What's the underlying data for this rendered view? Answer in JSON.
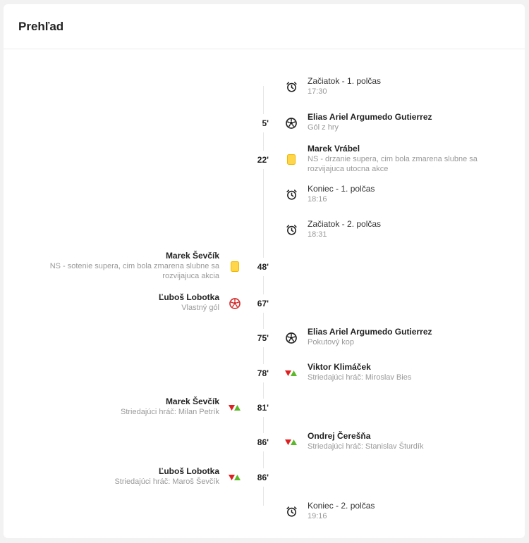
{
  "header": {
    "title": "Prehľad"
  },
  "colors": {
    "yellow_card": "#ffd54a",
    "own_goal": "#d32f2f",
    "sub_out": "#e02020",
    "sub_in": "#5cb82a"
  },
  "events": [
    {
      "side": "right",
      "minute": "",
      "icon": "clock-icon",
      "title": "Začiatok - 1. polčas",
      "sub": "17:30",
      "plain": true
    },
    {
      "side": "right",
      "minute": "5'",
      "icon": "ball-icon",
      "title": "Elias Ariel Argumedo Gutierrez",
      "sub": "Gól z hry"
    },
    {
      "side": "right",
      "minute": "22'",
      "icon": "yellow-card-icon",
      "title": "Marek Vrábel",
      "sub": "NS - drzanie supera, cim bola zmarena slubne sa rozvijajuca utocna akce"
    },
    {
      "side": "right",
      "minute": "",
      "icon": "clock-icon",
      "title": "Koniec - 1. polčas",
      "sub": "18:16",
      "plain": true
    },
    {
      "side": "right",
      "minute": "",
      "icon": "clock-icon",
      "title": "Začiatok - 2. polčas",
      "sub": "18:31",
      "plain": true
    },
    {
      "side": "left",
      "minute": "48'",
      "icon": "yellow-card-icon",
      "title": "Marek Ševčík",
      "sub": "NS - sotenie supera, cim bola zmarena slubne sa rozvijajuca akcia"
    },
    {
      "side": "left",
      "minute": "67'",
      "icon": "own-goal-icon",
      "title": "Ľuboš Lobotka",
      "sub": "Vlastný gól"
    },
    {
      "side": "right",
      "minute": "75'",
      "icon": "ball-icon",
      "title": "Elias Ariel Argumedo Gutierrez",
      "sub": "Pokutový kop"
    },
    {
      "side": "right",
      "minute": "78'",
      "icon": "substitution-icon",
      "title": "Viktor Klimáček",
      "sub": "Striedajúci hráč: Miroslav Bies"
    },
    {
      "side": "left",
      "minute": "81'",
      "icon": "substitution-icon",
      "title": "Marek Ševčík",
      "sub": "Striedajúci hráč: Milan Petrík"
    },
    {
      "side": "right",
      "minute": "86'",
      "icon": "substitution-icon",
      "title": "Ondrej Čerešňa",
      "sub": "Striedajúci hráč: Stanislav Šturdík"
    },
    {
      "side": "left",
      "minute": "86'",
      "icon": "substitution-icon",
      "title": "Ľuboš Lobotka",
      "sub": "Striedajúci hráč: Maroš Ševčík"
    },
    {
      "side": "right",
      "minute": "",
      "icon": "clock-icon",
      "title": "Koniec - 2. polčas",
      "sub": "19:16",
      "plain": true
    }
  ]
}
